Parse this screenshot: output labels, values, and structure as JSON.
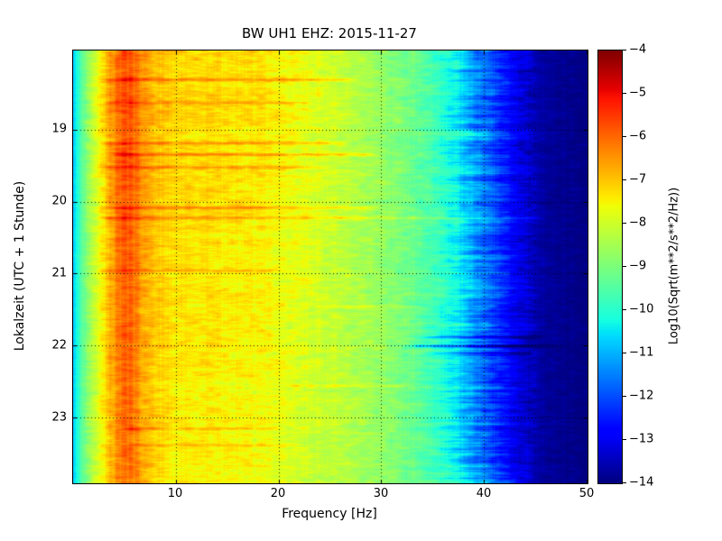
{
  "chart_data": {
    "type": "heatmap",
    "title": "BW UH1 EHZ: 2015-11-27",
    "xlabel": "Frequency [Hz]",
    "ylabel": "Lokalzeit (UTC + 1 Stunde)",
    "colorbar_label": "Log10(Sqrt(m**2/s**2/Hz))",
    "colormap": "jet",
    "grid": true,
    "x_range_hz": [
      0,
      50
    ],
    "x_ticks": [
      10,
      20,
      30,
      40,
      50
    ],
    "time_range_hours": [
      17.9,
      23.9
    ],
    "y_ticks_hours": [
      19,
      20,
      21,
      22,
      23
    ],
    "value_range": [
      -14,
      -4
    ],
    "colorbar_ticks": [
      -4,
      -5,
      -6,
      -7,
      -8,
      -9,
      -10,
      -11,
      -12,
      -13,
      -14
    ],
    "spectral_profile": {
      "freq_hz": [
        0,
        0.7,
        1.5,
        2.5,
        3.5,
        4.3,
        5.0,
        6.0,
        6.8,
        8,
        10,
        14,
        18,
        22,
        26,
        30,
        33,
        35,
        37,
        39,
        41,
        43,
        45,
        47,
        50
      ],
      "value": [
        -10.8,
        -9.6,
        -8.6,
        -7.7,
        -6.9,
        -6.2,
        -5.9,
        -6.1,
        -6.7,
        -7.1,
        -7.35,
        -7.4,
        -7.5,
        -7.8,
        -8.2,
        -8.7,
        -9.2,
        -9.7,
        -10.3,
        -11.2,
        -12.1,
        -13.0,
        -13.6,
        -13.85,
        -14.0
      ]
    },
    "time_trend": {
      "base": 0.22,
      "slope_per_hour": -0.055
    },
    "events": [
      {
        "time": 18.3,
        "f_min": 2,
        "f_max": 28,
        "amplitude": 0.8
      },
      {
        "time": 18.62,
        "f_min": 2,
        "f_max": 24,
        "amplitude": 0.6
      },
      {
        "time": 19.18,
        "f_min": 2,
        "f_max": 27,
        "amplitude": 0.8
      },
      {
        "time": 19.34,
        "f_min": 3,
        "f_max": 30,
        "amplitude": 1.0
      },
      {
        "time": 19.52,
        "f_min": 2,
        "f_max": 25,
        "amplitude": 0.7
      },
      {
        "time": 20.08,
        "f_min": 2,
        "f_max": 30,
        "amplitude": 0.9
      },
      {
        "time": 20.22,
        "f_min": 2,
        "f_max": 46,
        "amplitude": 0.7
      },
      {
        "time": 20.95,
        "f_min": 2,
        "f_max": 22,
        "amplitude": 0.5
      },
      {
        "time": 21.45,
        "f_min": 24,
        "f_max": 34,
        "amplitude": 0.5
      },
      {
        "time": 21.88,
        "f_min": 33,
        "f_max": 46,
        "amplitude": -1.1
      },
      {
        "time": 22.0,
        "f_min": 32,
        "f_max": 47,
        "amplitude": -1.4
      },
      {
        "time": 22.1,
        "f_min": 34,
        "f_max": 45,
        "amplitude": -0.9
      },
      {
        "time": 22.55,
        "f_min": 20,
        "f_max": 33,
        "amplitude": 0.6
      },
      {
        "time": 23.15,
        "f_min": 4,
        "f_max": 20,
        "amplitude": 0.6
      },
      {
        "time": 23.38,
        "f_min": 5,
        "f_max": 22,
        "amplitude": 0.55
      }
    ],
    "render_hints": {
      "seed": 20151127,
      "speckle": 0.62,
      "pixel": 0.2,
      "row_smooth": 0.55,
      "midband_drift": 0.3,
      "highband_drift": 1.2
    }
  }
}
